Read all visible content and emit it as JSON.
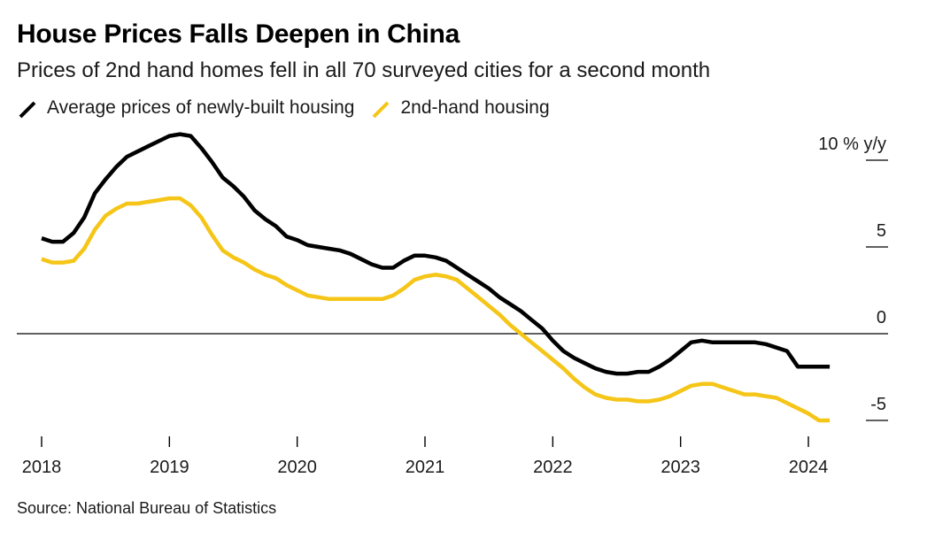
{
  "title": "House Prices Falls Deepen in China",
  "subtitle": "Prices of 2nd hand homes fell in all 70 surveyed cities for a second month",
  "source": "Source: National Bureau of Statistics",
  "colors": {
    "new": "#000000",
    "second": "#f5c518",
    "zero_line": "#000000"
  },
  "chart_data": {
    "type": "line",
    "ylim": [
      -5,
      10
    ],
    "y_ticks": [
      10,
      5,
      0,
      -5
    ],
    "y_tick_labels": [
      "10 % y/y",
      "5",
      "0",
      "-5"
    ],
    "x_ticks": [
      2018,
      2019,
      2020,
      2021,
      2022,
      2023,
      2024
    ],
    "x_tick_labels": [
      "2018",
      "2019",
      "2020",
      "2021",
      "2022",
      "2023",
      "2024"
    ],
    "legend": "top-left",
    "grid": false,
    "series": [
      {
        "name": "Average prices of newly-built housing",
        "color": "#000000",
        "x": [
          2018.0,
          2018.083,
          2018.167,
          2018.25,
          2018.333,
          2018.417,
          2018.5,
          2018.583,
          2018.667,
          2018.75,
          2018.833,
          2018.917,
          2019.0,
          2019.083,
          2019.167,
          2019.25,
          2019.333,
          2019.417,
          2019.5,
          2019.583,
          2019.667,
          2019.75,
          2019.833,
          2019.917,
          2020.0,
          2020.083,
          2020.167,
          2020.25,
          2020.333,
          2020.417,
          2020.5,
          2020.583,
          2020.667,
          2020.75,
          2020.833,
          2020.917,
          2021.0,
          2021.083,
          2021.167,
          2021.25,
          2021.333,
          2021.417,
          2021.5,
          2021.583,
          2021.667,
          2021.75,
          2021.833,
          2021.917,
          2022.0,
          2022.083,
          2022.167,
          2022.25,
          2022.333,
          2022.417,
          2022.5,
          2022.583,
          2022.667,
          2022.75,
          2022.833,
          2022.917,
          2023.0,
          2023.083,
          2023.167,
          2023.25,
          2023.333,
          2023.417,
          2023.5,
          2023.583,
          2023.667,
          2023.75,
          2023.833,
          2023.917,
          2024.0,
          2024.083,
          2024.167
        ],
        "y": [
          5.5,
          5.3,
          5.3,
          5.8,
          6.7,
          8.1,
          8.9,
          9.6,
          10.2,
          10.5,
          10.8,
          11.1,
          11.4,
          11.5,
          11.4,
          10.7,
          9.9,
          9.0,
          8.5,
          7.9,
          7.1,
          6.6,
          6.2,
          5.6,
          5.4,
          5.1,
          5.0,
          4.9,
          4.8,
          4.6,
          4.3,
          4.0,
          3.8,
          3.8,
          4.2,
          4.5,
          4.5,
          4.4,
          4.2,
          3.8,
          3.4,
          3.0,
          2.6,
          2.1,
          1.7,
          1.3,
          0.8,
          0.3,
          -0.4,
          -1.0,
          -1.4,
          -1.7,
          -2.0,
          -2.2,
          -2.3,
          -2.3,
          -2.2,
          -2.2,
          -1.9,
          -1.5,
          -1.0,
          -0.5,
          -0.4,
          -0.5,
          -0.5,
          -0.5,
          -0.5,
          -0.5,
          -0.6,
          -0.8,
          -1.0,
          -1.9,
          -1.9,
          -1.9,
          -1.9
        ]
      },
      {
        "name": "2nd-hand housing",
        "color": "#f5c518",
        "x": [
          2018.0,
          2018.083,
          2018.167,
          2018.25,
          2018.333,
          2018.417,
          2018.5,
          2018.583,
          2018.667,
          2018.75,
          2018.833,
          2018.917,
          2019.0,
          2019.083,
          2019.167,
          2019.25,
          2019.333,
          2019.417,
          2019.5,
          2019.583,
          2019.667,
          2019.75,
          2019.833,
          2019.917,
          2020.0,
          2020.083,
          2020.167,
          2020.25,
          2020.333,
          2020.417,
          2020.5,
          2020.583,
          2020.667,
          2020.75,
          2020.833,
          2020.917,
          2021.0,
          2021.083,
          2021.167,
          2021.25,
          2021.333,
          2021.417,
          2021.5,
          2021.583,
          2021.667,
          2021.75,
          2021.833,
          2021.917,
          2022.0,
          2022.083,
          2022.167,
          2022.25,
          2022.333,
          2022.417,
          2022.5,
          2022.583,
          2022.667,
          2022.75,
          2022.833,
          2022.917,
          2023.0,
          2023.083,
          2023.167,
          2023.25,
          2023.333,
          2023.417,
          2023.5,
          2023.583,
          2023.667,
          2023.75,
          2023.833,
          2023.917,
          2024.0,
          2024.083,
          2024.167
        ],
        "y": [
          4.3,
          4.1,
          4.1,
          4.2,
          4.9,
          6.0,
          6.8,
          7.2,
          7.5,
          7.5,
          7.6,
          7.7,
          7.8,
          7.8,
          7.4,
          6.7,
          5.7,
          4.8,
          4.4,
          4.1,
          3.7,
          3.4,
          3.2,
          2.8,
          2.5,
          2.2,
          2.1,
          2.0,
          2.0,
          2.0,
          2.0,
          2.0,
          2.0,
          2.2,
          2.6,
          3.1,
          3.3,
          3.4,
          3.3,
          3.1,
          2.6,
          2.1,
          1.6,
          1.1,
          0.5,
          0.0,
          -0.5,
          -1.0,
          -1.5,
          -2.0,
          -2.6,
          -3.1,
          -3.5,
          -3.7,
          -3.8,
          -3.8,
          -3.9,
          -3.9,
          -3.8,
          -3.6,
          -3.3,
          -3.0,
          -2.9,
          -2.9,
          -3.1,
          -3.3,
          -3.5,
          -3.5,
          -3.6,
          -3.7,
          -4.0,
          -4.3,
          -4.6,
          -5.0,
          -5.0
        ]
      }
    ]
  }
}
